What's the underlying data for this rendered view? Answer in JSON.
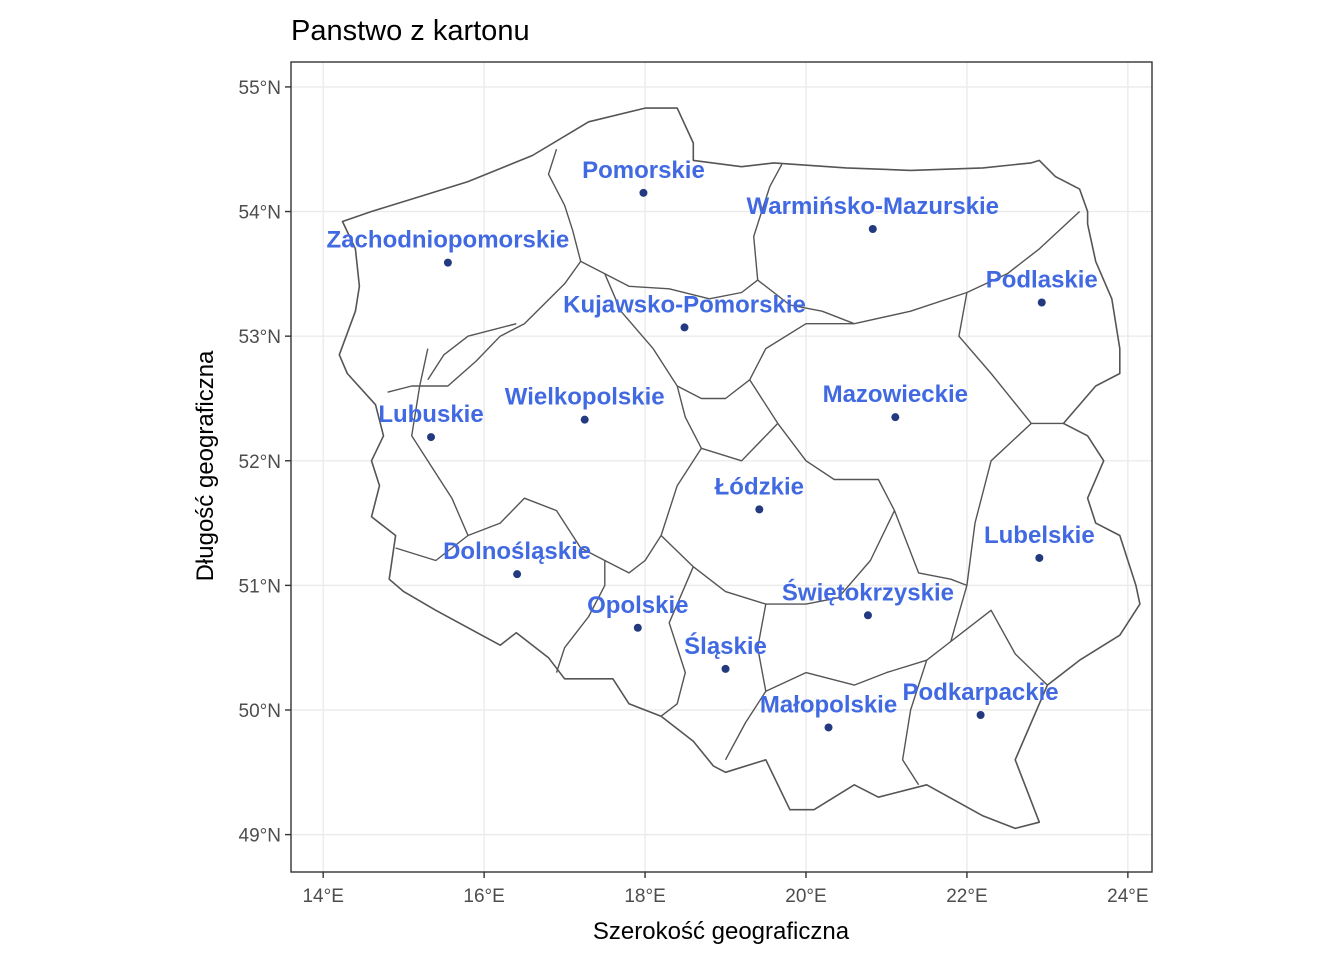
{
  "title": "Panstwo z kartonu",
  "axes": {
    "xlabel": "Szerokość geograficzna",
    "ylabel": "Długość geograficzna",
    "xlim": [
      13.6,
      24.3
    ],
    "ylim": [
      48.7,
      55.2
    ],
    "x_ticks": [
      {
        "value": 14,
        "label": "14°E"
      },
      {
        "value": 16,
        "label": "16°E"
      },
      {
        "value": 18,
        "label": "18°E"
      },
      {
        "value": 20,
        "label": "20°E"
      },
      {
        "value": 22,
        "label": "22°E"
      },
      {
        "value": 24,
        "label": "24°E"
      }
    ],
    "y_ticks": [
      {
        "value": 49,
        "label": "49°N"
      },
      {
        "value": 50,
        "label": "50°N"
      },
      {
        "value": 51,
        "label": "51°N"
      },
      {
        "value": 52,
        "label": "52°N"
      },
      {
        "value": 53,
        "label": "53°N"
      },
      {
        "value": 54,
        "label": "54°N"
      },
      {
        "value": 55,
        "label": "55°N"
      }
    ],
    "grid": true
  },
  "colors": {
    "label": "#4169e1",
    "point": "#233a80",
    "border": "#555555",
    "grid": "#ebebeb",
    "frame": "#333333"
  },
  "chart_data": {
    "type": "scatter",
    "regions": [
      {
        "name": "Pomorskie",
        "lon": 17.98,
        "lat": 54.15
      },
      {
        "name": "Warmińsko-Mazurskie",
        "lon": 20.83,
        "lat": 53.86
      },
      {
        "name": "Zachodniopomorskie",
        "lon": 15.55,
        "lat": 53.59
      },
      {
        "name": "Podlaskie",
        "lon": 22.93,
        "lat": 53.27
      },
      {
        "name": "Kujawsko-Pomorskie",
        "lon": 18.49,
        "lat": 53.07
      },
      {
        "name": "Wielkopolskie",
        "lon": 17.25,
        "lat": 52.33
      },
      {
        "name": "Mazowieckie",
        "lon": 21.11,
        "lat": 52.35
      },
      {
        "name": "Lubuskie",
        "lon": 15.34,
        "lat": 52.19
      },
      {
        "name": "Łódzkie",
        "lon": 19.42,
        "lat": 51.61
      },
      {
        "name": "Lubelskie",
        "lon": 22.9,
        "lat": 51.22
      },
      {
        "name": "Dolnośląskie",
        "lon": 16.41,
        "lat": 51.09
      },
      {
        "name": "Świętokrzyskie",
        "lon": 20.77,
        "lat": 50.76
      },
      {
        "name": "Opolskie",
        "lon": 17.91,
        "lat": 50.66
      },
      {
        "name": "Śląskie",
        "lon": 19.0,
        "lat": 50.33
      },
      {
        "name": "Małopolskie",
        "lon": 20.28,
        "lat": 49.86
      },
      {
        "name": "Podkarpackie",
        "lon": 22.17,
        "lat": 49.96
      }
    ],
    "outline": [
      [
        14.24,
        53.92
      ],
      [
        14.6,
        54.0
      ],
      [
        15.2,
        54.12
      ],
      [
        15.8,
        54.24
      ],
      [
        16.6,
        54.45
      ],
      [
        17.3,
        54.72
      ],
      [
        18.0,
        54.83
      ],
      [
        18.4,
        54.83
      ],
      [
        18.6,
        54.55
      ],
      [
        18.6,
        54.41
      ],
      [
        19.2,
        54.36
      ],
      [
        19.6,
        54.39
      ],
      [
        20.5,
        54.35
      ],
      [
        21.3,
        54.33
      ],
      [
        22.2,
        54.35
      ],
      [
        22.8,
        54.39
      ],
      [
        22.9,
        54.41
      ],
      [
        23.1,
        54.28
      ],
      [
        23.4,
        54.18
      ],
      [
        23.5,
        54.0
      ],
      [
        23.5,
        53.9
      ],
      [
        23.6,
        53.6
      ],
      [
        23.8,
        53.3
      ],
      [
        23.9,
        52.9
      ],
      [
        23.9,
        52.7
      ],
      [
        23.6,
        52.6
      ],
      [
        23.2,
        52.3
      ],
      [
        23.5,
        52.2
      ],
      [
        23.7,
        52.0
      ],
      [
        23.5,
        51.7
      ],
      [
        23.6,
        51.5
      ],
      [
        23.9,
        51.4
      ],
      [
        24.1,
        51.0
      ],
      [
        24.15,
        50.85
      ],
      [
        23.9,
        50.6
      ],
      [
        23.4,
        50.4
      ],
      [
        23.0,
        50.2
      ],
      [
        22.6,
        49.6
      ],
      [
        22.9,
        49.1
      ],
      [
        22.6,
        49.05
      ],
      [
        22.2,
        49.15
      ],
      [
        21.5,
        49.4
      ],
      [
        20.9,
        49.3
      ],
      [
        20.6,
        49.4
      ],
      [
        20.1,
        49.2
      ],
      [
        19.8,
        49.2
      ],
      [
        19.5,
        49.6
      ],
      [
        19.0,
        49.5
      ],
      [
        18.85,
        49.55
      ],
      [
        18.6,
        49.75
      ],
      [
        18.2,
        49.95
      ],
      [
        17.8,
        50.05
      ],
      [
        17.6,
        50.25
      ],
      [
        17.0,
        50.25
      ],
      [
        16.8,
        50.42
      ],
      [
        16.4,
        50.62
      ],
      [
        16.2,
        50.52
      ],
      [
        15.4,
        50.8
      ],
      [
        15.0,
        50.95
      ],
      [
        14.82,
        51.05
      ],
      [
        14.9,
        51.4
      ],
      [
        14.6,
        51.55
      ],
      [
        14.7,
        51.8
      ],
      [
        14.6,
        52.0
      ],
      [
        14.75,
        52.2
      ],
      [
        14.65,
        52.45
      ],
      [
        14.3,
        52.7
      ],
      [
        14.2,
        52.85
      ],
      [
        14.4,
        53.2
      ],
      [
        14.45,
        53.4
      ],
      [
        14.4,
        53.7
      ],
      [
        14.24,
        53.92
      ]
    ],
    "internal_borders": [
      [
        [
          16.9,
          54.5
        ],
        [
          16.8,
          54.3
        ],
        [
          17.0,
          54.05
        ],
        [
          17.1,
          53.85
        ],
        [
          17.2,
          53.6
        ],
        [
          17.0,
          53.42
        ],
        [
          16.5,
          53.1
        ],
        [
          16.2,
          53.0
        ],
        [
          15.9,
          52.8
        ],
        [
          15.55,
          52.6
        ],
        [
          15.1,
          52.6
        ],
        [
          14.8,
          52.55
        ]
      ],
      [
        [
          17.2,
          53.6
        ],
        [
          17.5,
          53.5
        ],
        [
          17.8,
          53.4
        ],
        [
          18.3,
          53.38
        ],
        [
          18.8,
          53.3
        ],
        [
          19.2,
          53.35
        ],
        [
          19.4,
          53.45
        ],
        [
          19.8,
          53.25
        ],
        [
          20.2,
          53.2
        ],
        [
          20.6,
          53.1
        ]
      ],
      [
        [
          19.4,
          53.45
        ],
        [
          19.35,
          53.8
        ],
        [
          19.45,
          54.0
        ],
        [
          19.55,
          54.2
        ],
        [
          19.7,
          54.38
        ]
      ],
      [
        [
          20.6,
          53.1
        ],
        [
          21.3,
          53.2
        ],
        [
          22.0,
          53.35
        ],
        [
          22.5,
          53.5
        ],
        [
          22.9,
          53.7
        ],
        [
          23.4,
          54.0
        ]
      ],
      [
        [
          22.0,
          53.35
        ],
        [
          21.9,
          53.0
        ],
        [
          22.3,
          52.7
        ],
        [
          22.8,
          52.3
        ],
        [
          23.2,
          52.3
        ]
      ],
      [
        [
          20.6,
          53.1
        ],
        [
          20.0,
          53.1
        ],
        [
          19.5,
          52.9
        ],
        [
          19.3,
          52.65
        ],
        [
          19.0,
          52.5
        ],
        [
          18.7,
          52.5
        ],
        [
          18.4,
          52.6
        ],
        [
          18.1,
          52.9
        ],
        [
          17.7,
          53.2
        ],
        [
          17.5,
          53.5
        ]
      ],
      [
        [
          19.3,
          52.65
        ],
        [
          19.65,
          52.3
        ],
        [
          20.0,
          52.0
        ],
        [
          20.35,
          51.85
        ],
        [
          20.9,
          51.85
        ],
        [
          21.1,
          51.6
        ],
        [
          21.4,
          51.1
        ],
        [
          21.8,
          51.05
        ],
        [
          22.0,
          51.0
        ],
        [
          22.1,
          51.5
        ],
        [
          22.3,
          52.0
        ],
        [
          22.8,
          52.3
        ]
      ],
      [
        [
          18.4,
          52.6
        ],
        [
          18.5,
          52.35
        ],
        [
          18.7,
          52.1
        ],
        [
          19.2,
          52.0
        ],
        [
          19.65,
          52.3
        ]
      ],
      [
        [
          18.7,
          52.1
        ],
        [
          18.4,
          51.8
        ],
        [
          18.2,
          51.4
        ],
        [
          18.0,
          51.2
        ],
        [
          17.8,
          51.1
        ],
        [
          17.5,
          51.2
        ],
        [
          17.2,
          51.3
        ],
        [
          16.9,
          51.6
        ],
        [
          16.5,
          51.7
        ],
        [
          16.2,
          51.5
        ],
        [
          15.8,
          51.4
        ],
        [
          15.4,
          51.2
        ],
        [
          14.9,
          51.3
        ]
      ],
      [
        [
          15.3,
          52.9
        ],
        [
          15.2,
          52.6
        ],
        [
          15.1,
          52.2
        ],
        [
          15.4,
          51.9
        ],
        [
          15.6,
          51.7
        ],
        [
          15.8,
          51.4
        ]
      ],
      [
        [
          16.4,
          53.1
        ],
        [
          15.8,
          53.0
        ],
        [
          15.5,
          52.85
        ],
        [
          15.3,
          52.65
        ]
      ],
      [
        [
          18.2,
          51.4
        ],
        [
          18.6,
          51.15
        ],
        [
          19.0,
          50.95
        ],
        [
          19.5,
          50.85
        ],
        [
          20.0,
          50.85
        ],
        [
          20.4,
          50.9
        ],
        [
          20.8,
          51.2
        ],
        [
          21.1,
          51.6
        ]
      ],
      [
        [
          17.5,
          51.2
        ],
        [
          17.5,
          51.0
        ],
        [
          17.3,
          50.75
        ],
        [
          17.0,
          50.5
        ],
        [
          16.9,
          50.3
        ]
      ],
      [
        [
          18.6,
          51.15
        ],
        [
          18.3,
          50.7
        ],
        [
          18.5,
          50.3
        ],
        [
          18.4,
          50.05
        ],
        [
          18.2,
          49.95
        ]
      ],
      [
        [
          19.5,
          50.85
        ],
        [
          19.4,
          50.5
        ],
        [
          19.5,
          50.15
        ],
        [
          19.25,
          49.9
        ],
        [
          19.0,
          49.6
        ]
      ],
      [
        [
          19.5,
          50.15
        ],
        [
          20.0,
          50.3
        ],
        [
          20.6,
          50.2
        ],
        [
          21.0,
          50.3
        ],
        [
          21.5,
          50.4
        ],
        [
          21.8,
          50.55
        ],
        [
          22.0,
          51.0
        ]
      ],
      [
        [
          21.5,
          50.4
        ],
        [
          21.3,
          50.0
        ],
        [
          21.2,
          49.6
        ],
        [
          21.4,
          49.4
        ]
      ],
      [
        [
          21.8,
          50.55
        ],
        [
          22.3,
          50.8
        ],
        [
          22.6,
          50.45
        ],
        [
          23.0,
          50.2
        ]
      ]
    ]
  }
}
